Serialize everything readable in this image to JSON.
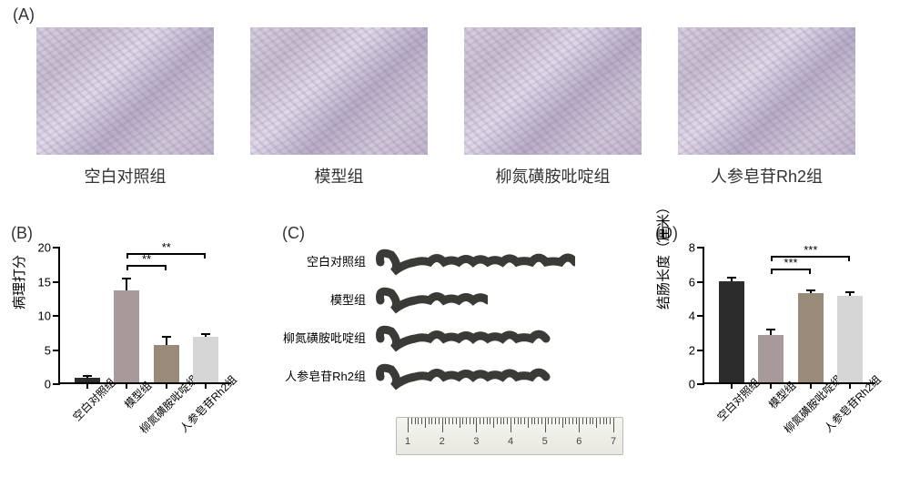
{
  "panels": {
    "A": "(A)",
    "B": "(B)",
    "C": "(C)",
    "D": "(D)"
  },
  "groups": [
    "空白对照组",
    "模型组",
    "柳氮磺胺吡啶组",
    "人参皂苷Rh2组"
  ],
  "panelB": {
    "type": "bar",
    "ylabel": "病理打分",
    "ylim": [
      0,
      20
    ],
    "ytick_step": 5,
    "values": [
      0.7,
      13.5,
      5.5,
      6.7
    ],
    "errors": [
      0.4,
      1.8,
      1.3,
      0.5
    ],
    "bar_colors": [
      "#2c2c2c",
      "#a89a9a",
      "#9a8a7a",
      "#d6d6d6"
    ],
    "signif": [
      {
        "from": 1,
        "to": 2,
        "label": "**",
        "y": 17.5
      },
      {
        "from": 1,
        "to": 3,
        "label": "**",
        "y": 19.2
      }
    ],
    "axis_font_size": 15,
    "tick_font_size": 13,
    "xlabel_font_size": 12
  },
  "panelC": {
    "colon_lengths_cm": [
      6.0,
      3.0,
      5.3,
      5.3
    ],
    "colon_color": "#3a3a36",
    "ruler_range": [
      1,
      7
    ],
    "label_font_size": 13,
    "ruler_num_font_size": 11
  },
  "panelD": {
    "type": "bar",
    "ylabel": "结肠长度（厘米）",
    "ylim": [
      0,
      8
    ],
    "ytick_step": 2,
    "values": [
      5.9,
      2.8,
      5.25,
      5.05
    ],
    "errors": [
      0.28,
      0.35,
      0.2,
      0.3
    ],
    "bar_colors": [
      "#2c2c2c",
      "#a89a9a",
      "#9a8a7a",
      "#d6d6d6"
    ],
    "signif": [
      {
        "from": 1,
        "to": 2,
        "label": "***",
        "y": 6.8
      },
      {
        "from": 1,
        "to": 3,
        "label": "***",
        "y": 7.5
      }
    ],
    "axis_font_size": 15,
    "tick_font_size": 13,
    "xlabel_font_size": 12
  },
  "layout": {
    "background_color": "#ffffff",
    "panel_label_font_size": 18,
    "histology_label_font_size": 18
  }
}
